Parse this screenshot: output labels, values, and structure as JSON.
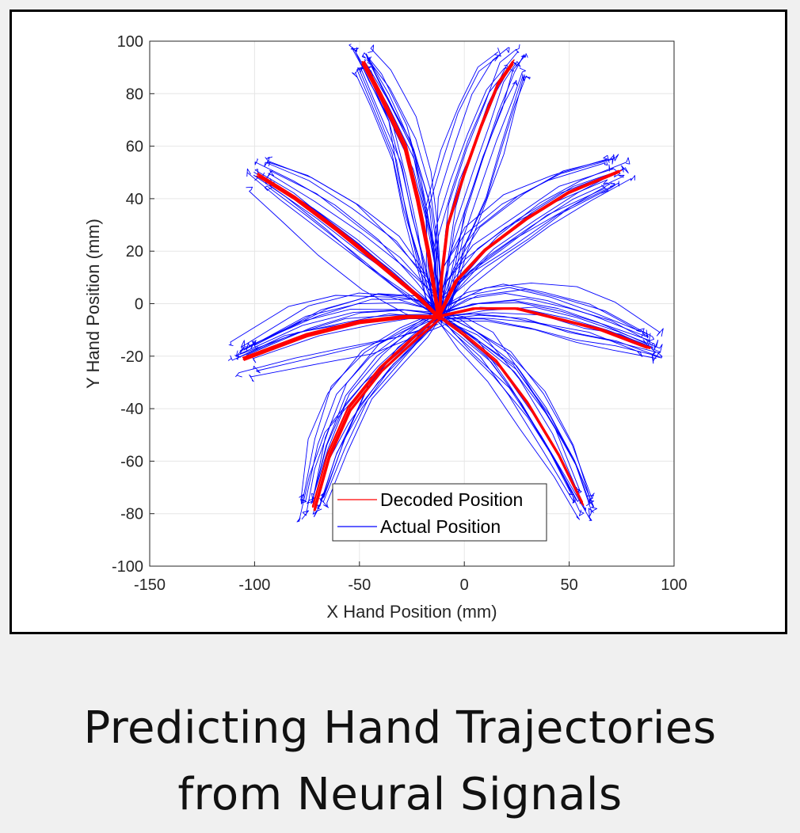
{
  "caption": {
    "line1": "Predicting Hand Trajectories",
    "line2": "from Neural Signals"
  },
  "chart_data": {
    "type": "line",
    "title": "",
    "xlabel": "X Hand Position (mm)",
    "ylabel": "Y Hand Position (mm)",
    "xlim": [
      -150,
      100
    ],
    "ylim": [
      -100,
      100
    ],
    "xticks": [
      -150,
      -100,
      -50,
      0,
      50,
      100
    ],
    "yticks": [
      -100,
      -80,
      -60,
      -40,
      -20,
      0,
      20,
      40,
      60,
      80,
      100
    ],
    "grid": true,
    "legend": {
      "placement": "bottom-center",
      "entries": [
        {
          "label": "Decoded Position",
          "color": "#ff0000"
        },
        {
          "label": "Actual Position",
          "color": "#0000ff"
        }
      ]
    },
    "origin": [
      -12,
      -5
    ],
    "series": [
      {
        "name": "Decoded Position",
        "color": "#ff0000",
        "kind": "mean-reach-paths",
        "paths": [
          [
            [
              -12,
              -5
            ],
            [
              -14,
              5
            ],
            [
              -17,
              20
            ],
            [
              -22,
              40
            ],
            [
              -28,
              60
            ],
            [
              -40,
              80
            ],
            [
              -48,
              92
            ]
          ],
          [
            [
              -12,
              -5
            ],
            [
              -11,
              10
            ],
            [
              -8,
              30
            ],
            [
              0,
              50
            ],
            [
              8,
              68
            ],
            [
              16,
              84
            ],
            [
              23,
              92
            ]
          ],
          [
            [
              -12,
              -5
            ],
            [
              -4,
              8
            ],
            [
              10,
              20
            ],
            [
              30,
              32
            ],
            [
              50,
              42
            ],
            [
              74,
              50
            ]
          ],
          [
            [
              -12,
              -5
            ],
            [
              5,
              -2
            ],
            [
              25,
              -2
            ],
            [
              45,
              -6
            ],
            [
              65,
              -10
            ],
            [
              88,
              -17
            ]
          ],
          [
            [
              -12,
              -5
            ],
            [
              0,
              -12
            ],
            [
              15,
              -22
            ],
            [
              30,
              -38
            ],
            [
              45,
              -58
            ],
            [
              56,
              -76
            ]
          ],
          [
            [
              -12,
              -5
            ],
            [
              -25,
              -14
            ],
            [
              -40,
              -25
            ],
            [
              -55,
              -40
            ],
            [
              -65,
              -58
            ],
            [
              -72,
              -78
            ]
          ],
          [
            [
              -12,
              -5
            ],
            [
              -28,
              -5
            ],
            [
              -50,
              -7
            ],
            [
              -75,
              -12
            ],
            [
              -105,
              -21
            ]
          ],
          [
            [
              -12,
              -5
            ],
            [
              -22,
              3
            ],
            [
              -40,
              15
            ],
            [
              -60,
              28
            ],
            [
              -80,
              40
            ],
            [
              -98,
              49
            ]
          ]
        ]
      },
      {
        "name": "Actual Position",
        "color": "#0000ff",
        "kind": "single-reach-paths",
        "paths_per_target": 16,
        "spread_mm": 5,
        "paths": [
          [
            [
              -12,
              -5
            ],
            [
              -14,
              5
            ],
            [
              -17,
              20
            ],
            [
              -22,
              40
            ],
            [
              -28,
              60
            ],
            [
              -40,
              80
            ],
            [
              -48,
              92
            ]
          ],
          [
            [
              -12,
              -5
            ],
            [
              -11,
              10
            ],
            [
              -8,
              30
            ],
            [
              0,
              50
            ],
            [
              8,
              68
            ],
            [
              16,
              84
            ],
            [
              23,
              92
            ]
          ],
          [
            [
              -12,
              -5
            ],
            [
              -4,
              8
            ],
            [
              10,
              20
            ],
            [
              30,
              32
            ],
            [
              50,
              42
            ],
            [
              74,
              50
            ]
          ],
          [
            [
              -12,
              -5
            ],
            [
              5,
              -2
            ],
            [
              25,
              -2
            ],
            [
              45,
              -6
            ],
            [
              65,
              -10
            ],
            [
              88,
              -17
            ]
          ],
          [
            [
              -12,
              -5
            ],
            [
              0,
              -12
            ],
            [
              15,
              -22
            ],
            [
              30,
              -38
            ],
            [
              45,
              -58
            ],
            [
              56,
              -76
            ]
          ],
          [
            [
              -12,
              -5
            ],
            [
              -25,
              -14
            ],
            [
              -40,
              -25
            ],
            [
              -55,
              -40
            ],
            [
              -65,
              -58
            ],
            [
              -72,
              -78
            ]
          ],
          [
            [
              -12,
              -5
            ],
            [
              -28,
              -5
            ],
            [
              -50,
              -7
            ],
            [
              -75,
              -12
            ],
            [
              -105,
              -21
            ]
          ],
          [
            [
              -12,
              -5
            ],
            [
              -22,
              3
            ],
            [
              -40,
              15
            ],
            [
              -60,
              28
            ],
            [
              -80,
              40
            ],
            [
              -98,
              49
            ]
          ]
        ]
      }
    ]
  }
}
